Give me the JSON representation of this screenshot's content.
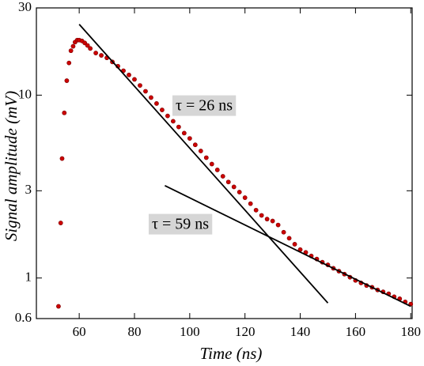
{
  "chart_data": {
    "type": "scatter",
    "x_label": "Time (ns)",
    "y_label": "Signal amplitude (mV)",
    "xlim": [
      44.5,
      180.5
    ],
    "ylim": [
      0.6,
      30
    ],
    "yscale": "log",
    "xticks": [
      60,
      80,
      100,
      120,
      140,
      160,
      180
    ],
    "yticks": [
      0.6,
      1,
      3,
      10,
      30
    ],
    "series": [
      {
        "color": "#cc0000",
        "x": [
          52.5,
          53.3,
          53.8,
          54.6,
          55.5,
          56.3,
          57,
          57.8,
          58.5,
          59.3,
          60,
          61,
          62,
          63,
          64,
          66,
          68,
          70,
          72,
          74,
          76,
          78,
          80,
          82,
          84,
          86,
          88,
          90,
          92,
          94,
          96,
          98,
          100,
          102,
          104,
          106,
          108,
          110,
          112,
          114,
          116,
          118,
          120,
          122,
          124,
          126,
          128,
          130,
          132,
          134,
          136,
          138,
          140,
          142,
          144,
          146,
          148,
          150,
          152,
          154,
          156,
          158,
          160,
          162,
          164,
          166,
          168,
          170,
          172,
          174,
          176,
          178,
          180
        ],
        "values": [
          0.7,
          2.0,
          4.5,
          8.0,
          12,
          15,
          17.5,
          18.5,
          19.5,
          20,
          20,
          19.8,
          19.3,
          18.7,
          18,
          17,
          16.5,
          16,
          15.2,
          14.4,
          13.6,
          12.9,
          12.2,
          11.3,
          10.5,
          9.7,
          9.0,
          8.3,
          7.7,
          7.2,
          6.7,
          6.2,
          5.8,
          5.35,
          4.95,
          4.55,
          4.2,
          3.9,
          3.6,
          3.35,
          3.15,
          2.95,
          2.75,
          2.55,
          2.35,
          2.2,
          2.1,
          2.05,
          1.95,
          1.78,
          1.65,
          1.53,
          1.43,
          1.38,
          1.32,
          1.27,
          1.22,
          1.18,
          1.13,
          1.09,
          1.05,
          1.01,
          0.97,
          0.94,
          0.91,
          0.89,
          0.86,
          0.84,
          0.82,
          0.79,
          0.77,
          0.74,
          0.72
        ]
      }
    ],
    "fits": [
      {
        "color": "#000000",
        "x": [
          60,
          150
        ],
        "values": [
          24.4,
          0.73
        ]
      },
      {
        "color": "#000000",
        "x": [
          91,
          180
        ],
        "values": [
          3.2,
          0.7
        ]
      }
    ],
    "annotations": [
      "τ = 26 ns",
      "τ = 59 ns"
    ]
  }
}
